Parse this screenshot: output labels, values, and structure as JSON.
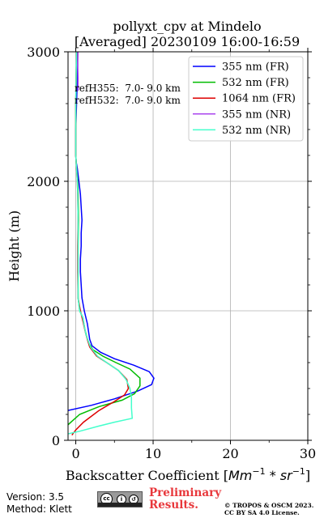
{
  "chart_data": {
    "type": "line",
    "title": "pollyxt_cpv at Mindelo",
    "subtitle": "[Averaged] 20230109 16:00-16:59",
    "xlabel": "Backscatter Coefficient [Mm⁻¹ * sr⁻¹]",
    "ylabel": "Height (m)",
    "xlim": [
      -1,
      30
    ],
    "ylim": [
      0,
      3000
    ],
    "xticks": [
      0,
      10,
      20,
      30
    ],
    "yticks": [
      0,
      1000,
      2000,
      3000
    ],
    "grid": true,
    "legend_position": "top-right",
    "annotations": [
      "refH355:  7.0- 9.0 km",
      "refH532:  7.0- 9.0 km"
    ],
    "series": [
      {
        "name": "355 nm (FR)",
        "color": "#0000ff",
        "points": [
          [
            -1.0,
            230
          ],
          [
            2,
            270
          ],
          [
            5,
            320
          ],
          [
            8,
            380
          ],
          [
            9.8,
            430
          ],
          [
            10.1,
            480
          ],
          [
            9.5,
            530
          ],
          [
            7.5,
            580
          ],
          [
            5,
            630
          ],
          [
            3.2,
            680
          ],
          [
            2.1,
            730
          ],
          [
            1.8,
            780
          ],
          [
            1.5,
            900
          ],
          [
            1.1,
            1000
          ],
          [
            0.8,
            1100
          ],
          [
            0.7,
            1200
          ],
          [
            0.6,
            1300
          ],
          [
            0.6,
            1400
          ],
          [
            0.7,
            1500
          ],
          [
            0.7,
            1600
          ],
          [
            0.8,
            1700
          ],
          [
            0.7,
            1800
          ],
          [
            0.6,
            1900
          ],
          [
            0.4,
            2000
          ],
          [
            0.2,
            2100
          ],
          [
            0.05,
            2150
          ],
          [
            0.0,
            2200
          ],
          [
            0.0,
            2400
          ],
          [
            0.1,
            2600
          ],
          [
            0.2,
            2800
          ],
          [
            0.25,
            2900
          ],
          [
            0.2,
            3000
          ]
        ]
      },
      {
        "name": "532 nm (FR)",
        "color": "#00bb00",
        "points": [
          [
            -1.0,
            120
          ],
          [
            0.5,
            200
          ],
          [
            3,
            260
          ],
          [
            6,
            310
          ],
          [
            7.6,
            360
          ],
          [
            8.3,
            420
          ],
          [
            8.3,
            480
          ],
          [
            7,
            550
          ],
          [
            5.2,
            600
          ],
          [
            3.5,
            650
          ],
          [
            2.2,
            700
          ],
          [
            1.6,
            760
          ],
          [
            1.2,
            850
          ],
          [
            0.9,
            950
          ],
          [
            0.5,
            1000
          ],
          [
            0.3,
            1100
          ],
          [
            0.3,
            1300
          ],
          [
            0.3,
            1500
          ],
          [
            0.35,
            1700
          ],
          [
            0.3,
            1900
          ],
          [
            0.25,
            2000
          ],
          [
            0.1,
            2100
          ],
          [
            0.0,
            2200
          ],
          [
            0.0,
            2600
          ],
          [
            0.05,
            2800
          ],
          [
            0.1,
            3000
          ]
        ]
      },
      {
        "name": "1064 nm (FR)",
        "color": "#dd0000",
        "points": [
          [
            -0.5,
            40
          ],
          [
            0,
            80
          ],
          [
            1,
            140
          ],
          [
            3,
            230
          ],
          [
            5,
            300
          ],
          [
            6.3,
            350
          ],
          [
            6.8,
            400
          ],
          [
            6.6,
            470
          ],
          [
            5.5,
            540
          ],
          [
            4,
            600
          ],
          [
            2.7,
            650
          ],
          [
            1.8,
            720
          ],
          [
            1.3,
            820
          ],
          [
            1.0,
            900
          ],
          [
            0.6,
            1000
          ],
          [
            0.3,
            1100
          ],
          [
            0.25,
            1300
          ],
          [
            0.25,
            1500
          ],
          [
            0.3,
            1700
          ],
          [
            0.25,
            1900
          ],
          [
            0.2,
            2000
          ],
          [
            0.1,
            2100
          ],
          [
            0.0,
            2200
          ],
          [
            0.0,
            2600
          ],
          [
            0.05,
            2800
          ],
          [
            0.1,
            3000
          ]
        ]
      },
      {
        "name": "355 nm (NR)",
        "color": "#aa44ee",
        "points": [
          [
            0.3,
            2700
          ],
          [
            0.3,
            2800
          ],
          [
            0.25,
            2900
          ],
          [
            0.3,
            3000
          ]
        ]
      },
      {
        "name": "532 nm (NR)",
        "color": "#44ffcc",
        "points": [
          [
            -1.0,
            50
          ],
          [
            0.5,
            70
          ],
          [
            3,
            110
          ],
          [
            5,
            140
          ],
          [
            7.3,
            170
          ],
          [
            7.2,
            250
          ],
          [
            7.2,
            330
          ],
          [
            7,
            400
          ],
          [
            6.5,
            470
          ],
          [
            5.5,
            540
          ],
          [
            4,
            600
          ],
          [
            2.8,
            650
          ],
          [
            1.9,
            720
          ],
          [
            1.3,
            820
          ],
          [
            0.9,
            950
          ],
          [
            0.5,
            1000
          ],
          [
            0.3,
            1100
          ],
          [
            0.3,
            1300
          ],
          [
            0.3,
            1500
          ],
          [
            0.3,
            1700
          ],
          [
            0.25,
            1900
          ],
          [
            0.2,
            2000
          ],
          [
            0.1,
            2100
          ],
          [
            0.0,
            2200
          ],
          [
            0.0,
            2600
          ],
          [
            0.05,
            2800
          ],
          [
            0.1,
            3000
          ]
        ]
      }
    ]
  },
  "footer": {
    "version": "Version: 3.5",
    "method": "Method: Klett",
    "preliminary": [
      "Preliminary",
      "Results."
    ],
    "copyright": [
      "© TROPOS & OSCM 2023.",
      "CC BY SA 4.0 License."
    ]
  }
}
